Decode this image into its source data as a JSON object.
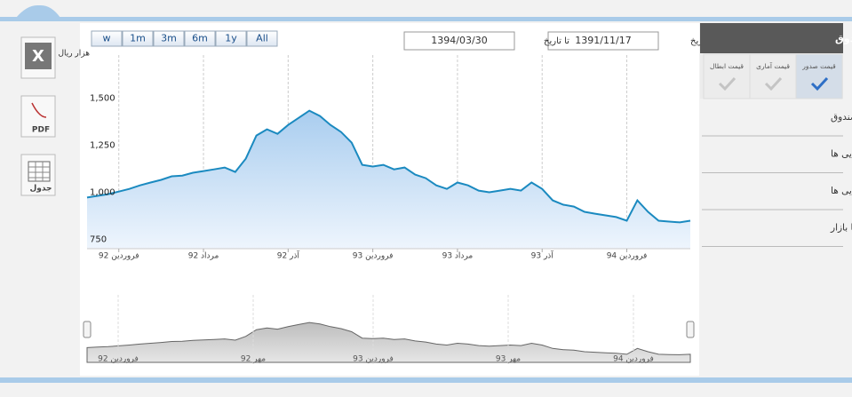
{
  "toolbar": {
    "ranges": [
      "w",
      "1m",
      "3m",
      "6m",
      "1y",
      "All"
    ],
    "from_label": "از تاریخ",
    "from_date": "1391/11/17",
    "to_label": "تا تاریخ",
    "to_date": "1394/03/30"
  },
  "sidebar": {
    "header": "قیمت های روزانه صندوق",
    "price_options": [
      "قیمت صدور",
      "قیمت آماری",
      "قیمت ابطال"
    ],
    "menu": [
      "ترکیب دارایی های صندوق",
      "صنایع در سبد دارایی ها",
      "ارزش خالص دارایی ها",
      "مقایسه بازده صندوق با بازار"
    ]
  },
  "export_icons": [
    "PDF",
    "جدول"
  ],
  "navigator": {
    "labels": [
      "فروردین 92",
      "مهر 92",
      "فروردین 93",
      "مهر 93",
      "فروردین 94"
    ]
  },
  "chart_data": {
    "type": "line",
    "y_label": "هزار ریال",
    "categories": [
      null,
      null,
      null,
      "فروردین 92",
      null,
      null,
      null,
      null,
      null,
      null,
      null,
      "مرداد 92",
      null,
      null,
      null,
      null,
      null,
      null,
      null,
      "آذر 92",
      null,
      null,
      null,
      null,
      null,
      null,
      null,
      "فروردین 93",
      null,
      null,
      null,
      null,
      null,
      null,
      null,
      "مرداد 93",
      null,
      null,
      null,
      null,
      null,
      null,
      null,
      "آذر 93",
      null,
      null,
      null,
      null,
      null,
      null,
      null,
      "فروردین 94",
      null,
      null,
      null,
      null,
      null,
      null
    ],
    "series": [
      {
        "name": "قیمت صدور",
        "color": "#1b8ac0",
        "values": [
          972,
          981,
          990,
          1004,
          1018,
          1037,
          1052,
          1066,
          1085,
          1089,
          1104,
          1113,
          1122,
          1132,
          1108,
          1179,
          1302,
          1335,
          1311,
          1358,
          1396,
          1434,
          1406,
          1358,
          1321,
          1264,
          1146,
          1137,
          1146,
          1122,
          1132,
          1094,
          1075,
          1037,
          1018,
          1052,
          1037,
          1009,
          1000,
          1009,
          1018,
          1009,
          1052,
          1018,
          957,
          934,
          924,
          896,
          886,
          877,
          868,
          849,
          957,
          896,
          849,
          844,
          840,
          849
        ]
      }
    ],
    "ylim": [
      700,
      1730
    ],
    "yticks": [
      {
        "value": 1500,
        "label": "1,500"
      },
      {
        "value": 1250,
        "label": "1,250"
      },
      {
        "value": 1000,
        "label": "1,000"
      },
      750
    ],
    "x_grid": true
  }
}
